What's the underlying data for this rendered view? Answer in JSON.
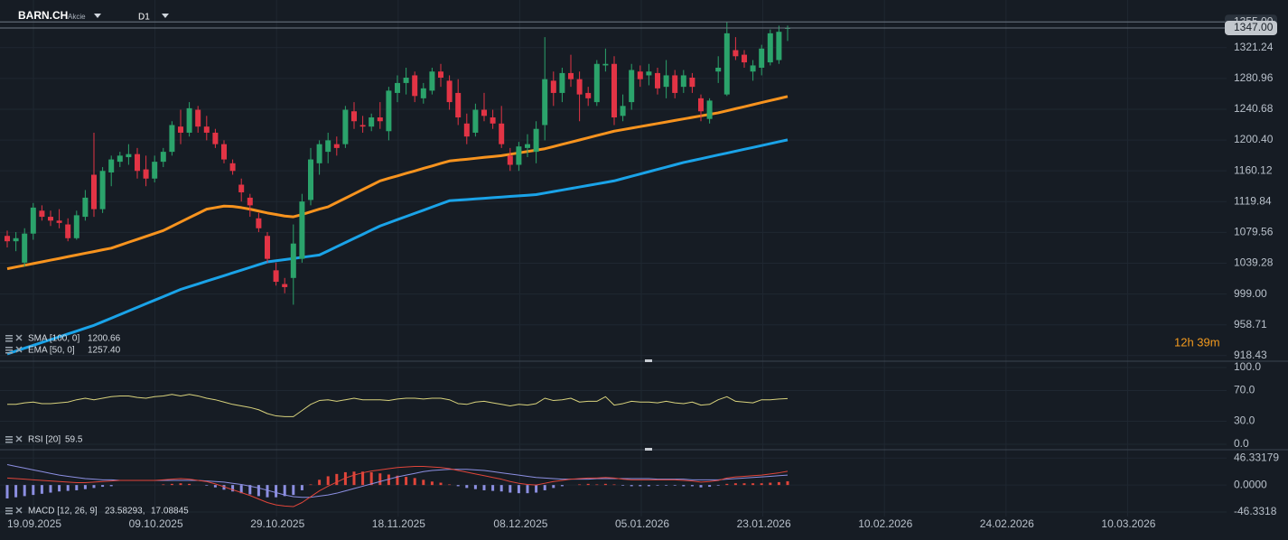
{
  "toolbar": {
    "symbol": "BARN.CH",
    "asset_class": "Akcie",
    "timeframe": "D1"
  },
  "countdown": "12h 39m",
  "xticks": [
    "19.09.2025",
    "09.10.2025",
    "29.10.2025",
    "18.11.2025",
    "08.12.2025",
    "05.01.2026",
    "23.01.2026",
    "10.02.2026",
    "24.02.2026",
    "10.03.2026"
  ],
  "chart_data": [
    {
      "type": "candlestick",
      "color_up": "#2ba36b",
      "color_down": "#e23445",
      "ylim": [
        911.1,
        1369.4
      ],
      "yticks": [
        1321.24,
        1280.96,
        1240.68,
        {
          "value": 1200.4,
          "label": "1200.40"
        },
        1160.12,
        1119.84,
        1079.56,
        1039.28,
        {
          "value": 999,
          "label": "999.00"
        },
        958.71,
        918.43
      ],
      "price_lines": [
        {
          "value": 1355,
          "label": "1355.00"
        },
        {
          "value": 1347,
          "label": "1347.00"
        }
      ],
      "open": [
        1075,
        1068,
        1040,
        1078,
        1108,
        1100,
        1095,
        1090,
        1072,
        1100,
        1155,
        1110,
        1158,
        1172,
        1178,
        1182,
        1162,
        1150,
        1172,
        1185,
        1218,
        1210,
        1240,
        1218,
        1210,
        1195,
        1170,
        1142,
        1125,
        1098,
        1075,
        1030,
        1012,
        1020,
        1045,
        1122,
        1170,
        1185,
        1195,
        1195,
        1238,
        1220,
        1218,
        1230,
        1212,
        1262,
        1275,
        1285,
        1255,
        1265,
        1290,
        1278,
        1262,
        1222,
        1210,
        1240,
        1230,
        1222,
        1180,
        1168,
        1190,
        1185,
        1220,
        1278,
        1262,
        1288,
        1280,
        1262,
        1250,
        1298,
        1300,
        1232,
        1250,
        1290,
        1285,
        1288,
        1270,
        1285,
        1270,
        1282,
        1255,
        1228,
        1290,
        1260,
        1318,
        1312,
        1290,
        1295,
        1302,
        1305,
        1346
      ],
      "high": [
        1082,
        1080,
        1085,
        1118,
        1115,
        1108,
        1110,
        1098,
        1108,
        1135,
        1210,
        1165,
        1180,
        1185,
        1195,
        1190,
        1180,
        1180,
        1190,
        1225,
        1240,
        1250,
        1245,
        1232,
        1215,
        1200,
        1175,
        1150,
        1130,
        1105,
        1080,
        1040,
        1020,
        1090,
        1130,
        1190,
        1200,
        1210,
        1205,
        1245,
        1250,
        1232,
        1235,
        1250,
        1270,
        1285,
        1295,
        1290,
        1275,
        1295,
        1300,
        1285,
        1280,
        1235,
        1248,
        1262,
        1240,
        1245,
        1190,
        1198,
        1208,
        1225,
        1335,
        1290,
        1295,
        1312,
        1290,
        1270,
        1305,
        1320,
        1310,
        1260,
        1300,
        1298,
        1300,
        1295,
        1305,
        1292,
        1292,
        1288,
        1260,
        1255,
        1310,
        1355,
        1335,
        1318,
        1305,
        1325,
        1345,
        1350,
        1350
      ],
      "low": [
        1060,
        1055,
        1035,
        1070,
        1095,
        1088,
        1085,
        1068,
        1070,
        1095,
        1100,
        1105,
        1140,
        1165,
        1168,
        1150,
        1140,
        1145,
        1165,
        1180,
        1195,
        1205,
        1210,
        1200,
        1190,
        1170,
        1155,
        1120,
        1100,
        1080,
        1040,
        1010,
        1000,
        985,
        1040,
        1115,
        1155,
        1170,
        1180,
        1190,
        1215,
        1210,
        1212,
        1215,
        1200,
        1250,
        1260,
        1250,
        1248,
        1260,
        1270,
        1240,
        1220,
        1195,
        1205,
        1225,
        1215,
        1190,
        1160,
        1160,
        1178,
        1170,
        1200,
        1245,
        1250,
        1270,
        1225,
        1245,
        1245,
        1290,
        1220,
        1225,
        1240,
        1270,
        1272,
        1260,
        1255,
        1255,
        1262,
        1262,
        1225,
        1222,
        1275,
        1258,
        1305,
        1295,
        1278,
        1285,
        1298,
        1300,
        1330
      ],
      "close": [
        1068,
        1072,
        1078,
        1112,
        1100,
        1095,
        1092,
        1072,
        1102,
        1125,
        1110,
        1160,
        1175,
        1180,
        1182,
        1160,
        1150,
        1172,
        1185,
        1220,
        1210,
        1242,
        1218,
        1210,
        1195,
        1175,
        1160,
        1132,
        1115,
        1085,
        1045,
        1015,
        1008,
        1065,
        1120,
        1175,
        1195,
        1200,
        1190,
        1240,
        1225,
        1218,
        1230,
        1225,
        1265,
        1275,
        1282,
        1258,
        1268,
        1290,
        1282,
        1250,
        1230,
        1205,
        1240,
        1232,
        1222,
        1195,
        1168,
        1192,
        1195,
        1215,
        1280,
        1262,
        1288,
        1280,
        1260,
        1255,
        1300,
        1300,
        1230,
        1245,
        1292,
        1280,
        1290,
        1268,
        1285,
        1262,
        1285,
        1270,
        1238,
        1252,
        1295,
        1340,
        1310,
        1302,
        1298,
        1320,
        1340,
        1342,
        1347
      ],
      "overlays": [
        {
          "name": "SMA [100, 0]",
          "color": "#1aa3e8",
          "last_value": 1200.66,
          "values": [
            920.6,
            924.3,
            928.1,
            931.8,
            935.6,
            939.3,
            943,
            946.8,
            950.5,
            954.3,
            958,
            962.7,
            967.4,
            972.1,
            976.8,
            981.5,
            986.2,
            990.9,
            995.6,
            1000.3,
            1005,
            1008.6,
            1012.2,
            1015.8,
            1019.4,
            1023,
            1026.6,
            1030.2,
            1033.8,
            1037.4,
            1041,
            1042.5,
            1044,
            1045.5,
            1047,
            1048.5,
            1050,
            1055.4,
            1060.9,
            1066.3,
            1071.7,
            1077.1,
            1082.6,
            1088,
            1092.1,
            1096.3,
            1100.4,
            1104.5,
            1108.6,
            1112.8,
            1116.9,
            1121,
            1121.8,
            1122.6,
            1123.4,
            1124.2,
            1125,
            1125.8,
            1126.6,
            1127.4,
            1128.2,
            1129,
            1131,
            1133,
            1135,
            1137,
            1139,
            1141,
            1143,
            1145,
            1147,
            1150,
            1153,
            1156,
            1159,
            1162,
            1165,
            1168,
            1171,
            1173.5,
            1175.9,
            1178.4,
            1180.9,
            1183.3,
            1185.8,
            1188.3,
            1190.7,
            1193.2,
            1195.7,
            1198.2,
            1200.66
          ]
        },
        {
          "name": "EMA [50, 0]",
          "color": "#f7931e",
          "last_value": {
            "value": 1257.4,
            "label": "1257.40"
          },
          "values": [
            1032,
            1034.3,
            1036.5,
            1038.8,
            1041,
            1043.3,
            1045.5,
            1047.8,
            1050,
            1052.3,
            1054.5,
            1056.8,
            1059,
            1062.8,
            1066.7,
            1070.5,
            1074.3,
            1078.2,
            1082,
            1087.6,
            1093.2,
            1098.8,
            1104.4,
            1110,
            1112,
            1114,
            1113.5,
            1112,
            1110,
            1107.5,
            1105,
            1103,
            1101,
            1100,
            1103,
            1106.5,
            1110,
            1113,
            1118.7,
            1124.3,
            1130,
            1135.7,
            1141.3,
            1147,
            1150.3,
            1153.5,
            1156.8,
            1160,
            1163.3,
            1166.5,
            1169.8,
            1173,
            1174.2,
            1175.3,
            1176.5,
            1177.7,
            1178.8,
            1180,
            1181.8,
            1183.6,
            1185.4,
            1187.2,
            1189,
            1191.9,
            1194.8,
            1197.6,
            1200.5,
            1203.4,
            1206.3,
            1209.1,
            1212,
            1214,
            1216,
            1218,
            1220,
            1222,
            1224,
            1226,
            1228,
            1230,
            1232,
            1234,
            1236,
            1238.7,
            1241.4,
            1244,
            1246.7,
            1249.4,
            1252.1,
            1254.7,
            1257.4
          ]
        }
      ]
    },
    {
      "type": "line",
      "name": "RSI [20]",
      "last_value": 59.5,
      "color": "#d8d27c",
      "ylim": [
        0,
        100
      ],
      "yticks": [
        {
          "value": 100,
          "label": "100.0"
        },
        {
          "value": 70,
          "label": "70.0"
        },
        {
          "value": 30,
          "label": "30.0"
        },
        {
          "value": 0,
          "label": "0.0"
        }
      ],
      "values": [
        52,
        52,
        54,
        55,
        53,
        53,
        54,
        55,
        58,
        60,
        58,
        60,
        62,
        63,
        63,
        61,
        60,
        62,
        63,
        65,
        63,
        65,
        63,
        60,
        58,
        55,
        52,
        50,
        48,
        45,
        40,
        37,
        36,
        36,
        44,
        52,
        57,
        58,
        56,
        58,
        60,
        58,
        58,
        58,
        57,
        59,
        60,
        60,
        59,
        60,
        60,
        58,
        53,
        52,
        55,
        56,
        54,
        52,
        50,
        52,
        51,
        53,
        60,
        57,
        58,
        60,
        55,
        56,
        56,
        62,
        51,
        53,
        56,
        55,
        55,
        54,
        56,
        54,
        53,
        55,
        51,
        52,
        58,
        62,
        56,
        55,
        54,
        58,
        58,
        59,
        59.5
      ]
    },
    {
      "type": "macd",
      "name": "MACD [12, 26, 9]",
      "ylim": [
        -54,
        57.5
      ],
      "yticks": [
        46.33179,
        {
          "value": 0,
          "label": "0.0000"
        },
        -46.3318
      ],
      "macd": {
        "color": "#e0453a",
        "last_value": {
          "value": 23.58293,
          "label": "23.58293,"
        },
        "values": [
          12,
          11,
          10,
          9,
          8,
          7,
          6,
          5,
          4,
          4,
          5,
          6,
          7,
          8,
          8,
          8,
          8,
          8,
          9,
          10,
          11,
          10,
          8,
          6,
          2,
          -3,
          -8,
          -13,
          -18,
          -24,
          -30,
          -34,
          -36,
          -37,
          -30,
          -20,
          -10,
          -2,
          5,
          12,
          17,
          21,
          24,
          26,
          28,
          30,
          31,
          32,
          32,
          31,
          30,
          28,
          25,
          22,
          19,
          16,
          13,
          10,
          6,
          3,
          1,
          0,
          3,
          6,
          8,
          10,
          11,
          12,
          12,
          13,
          12,
          10,
          9,
          9,
          9,
          9,
          9,
          9,
          8,
          7,
          5,
          6,
          8,
          12,
          14,
          15,
          16,
          17,
          19,
          21,
          23.58293
        ]
      },
      "signal": {
        "color": "#8c8fe2",
        "last_value": 17.08845,
        "values": [
          35,
          32,
          29,
          26,
          23,
          20,
          17,
          15,
          13,
          11,
          10,
          9,
          9,
          8,
          8,
          8,
          8,
          8,
          8,
          8,
          8,
          8,
          8,
          7,
          6,
          5,
          3,
          1,
          -2,
          -5,
          -9,
          -13,
          -17,
          -20,
          -21,
          -21,
          -19,
          -17,
          -14,
          -10,
          -6,
          -2,
          2,
          6,
          10,
          14,
          17,
          20,
          23,
          25,
          26,
          27,
          27,
          27,
          26,
          25,
          23,
          21,
          19,
          17,
          15,
          13,
          12,
          11,
          10,
          10,
          10,
          10,
          11,
          11,
          11,
          11,
          11,
          11,
          11,
          10,
          10,
          10,
          10,
          9,
          9,
          9,
          9,
          10,
          11,
          12,
          13,
          14,
          15,
          16,
          17.08845
        ]
      },
      "histogram": {
        "color_up": "#e0453a",
        "color_down": "#8c8fe2",
        "values": [
          -23,
          -21,
          -19,
          -17,
          -15,
          -13,
          -11,
          -10,
          -9,
          -7,
          -5,
          -3,
          -2,
          0,
          0,
          0,
          0,
          0,
          1,
          2,
          3,
          2,
          0,
          -1,
          -4,
          -8,
          -11,
          -14,
          -16,
          -19,
          -21,
          -21,
          -19,
          -17,
          -9,
          1,
          9,
          15,
          19,
          22,
          23,
          23,
          22,
          20,
          18,
          16,
          14,
          12,
          9,
          6,
          4,
          1,
          -2,
          -5,
          -7,
          -9,
          -10,
          -11,
          -13,
          -14,
          -14,
          -13,
          -9,
          -5,
          -2,
          0,
          1,
          2,
          1,
          2,
          1,
          -1,
          -2,
          -2,
          -2,
          -1,
          -1,
          -1,
          -2,
          -2,
          -4,
          -3,
          -1,
          2,
          3,
          3,
          3,
          3,
          4,
          5,
          6.49
        ]
      }
    }
  ]
}
